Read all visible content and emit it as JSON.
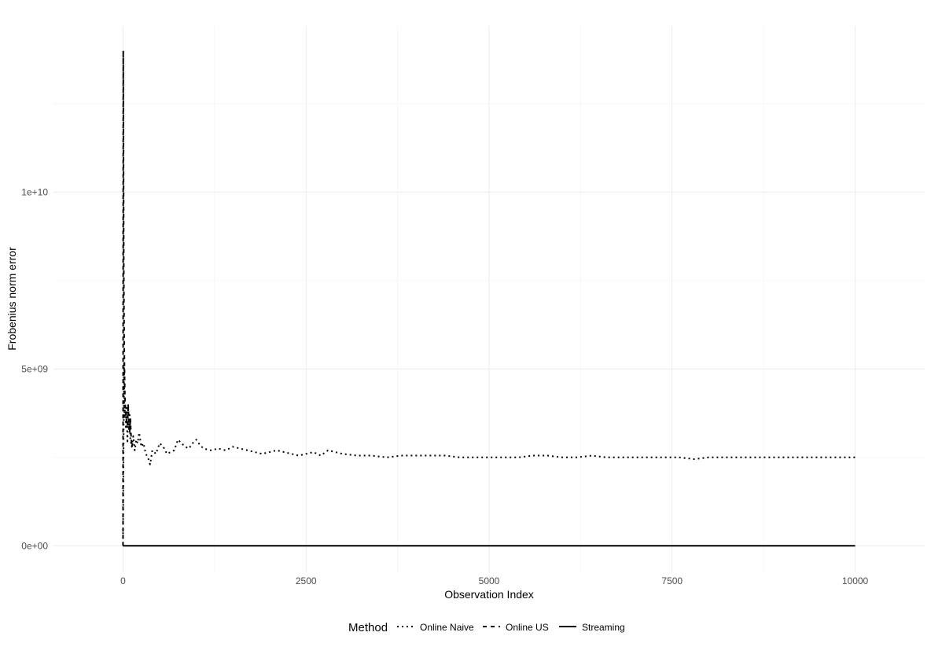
{
  "chart_data": {
    "type": "line",
    "xlabel": "Observation Index",
    "ylabel": "Frobenius norm error",
    "xlim": [
      -950,
      10950
    ],
    "ylim": [
      -750000000,
      14700000000
    ],
    "x_ticks": [
      0,
      2500,
      5000,
      7500,
      10000
    ],
    "x_tick_labels": [
      "0",
      "2500",
      "5000",
      "7500",
      "10000"
    ],
    "y_ticks": [
      0,
      5000000000,
      10000000000
    ],
    "y_tick_labels": [
      "0e+00",
      "5e+09",
      "1e+10"
    ],
    "grid": true,
    "legend": {
      "title": "Method",
      "position": "bottom"
    },
    "series": [
      {
        "name": "Online Naive",
        "linetype": "dotted",
        "x": [
          0,
          5,
          10,
          15,
          20,
          30,
          40,
          50,
          60,
          70,
          80,
          90,
          100,
          120,
          140,
          160,
          180,
          200,
          220,
          250,
          280,
          310,
          340,
          370,
          400,
          450,
          500,
          550,
          600,
          650,
          700,
          750,
          800,
          850,
          900,
          950,
          1000,
          1050,
          1100,
          1200,
          1300,
          1400,
          1500,
          1600,
          1700,
          1800,
          1900,
          2000,
          2100,
          2200,
          2300,
          2400,
          2500,
          2600,
          2700,
          2800,
          2900,
          3000,
          3200,
          3400,
          3600,
          3800,
          4000,
          4200,
          4400,
          4600,
          4800,
          5000,
          5200,
          5400,
          5600,
          5800,
          6000,
          6200,
          6400,
          6600,
          6800,
          7000,
          7200,
          7400,
          7600,
          7800,
          8000,
          8200,
          8400,
          8600,
          8800,
          9000,
          9200,
          9400,
          9600,
          9800,
          10000
        ],
        "y": [
          200000000,
          2000000000,
          3800000000,
          5200000000,
          3600000000,
          4000000000,
          3300000000,
          3900000000,
          2900000000,
          4000000000,
          3300000000,
          3700000000,
          3000000000,
          2800000000,
          3100000000,
          2700000000,
          3000000000,
          2900000000,
          3200000000,
          2800000000,
          2900000000,
          2600000000,
          2500000000,
          2300000000,
          2700000000,
          2600000000,
          2900000000,
          2800000000,
          2600000000,
          2650000000,
          2700000000,
          3000000000,
          2900000000,
          2800000000,
          2750000000,
          2900000000,
          3000000000,
          2850000000,
          2750000000,
          2700000000,
          2750000000,
          2700000000,
          2800000000,
          2750000000,
          2700000000,
          2650000000,
          2600000000,
          2650000000,
          2700000000,
          2650000000,
          2600000000,
          2550000000,
          2600000000,
          2650000000,
          2550000000,
          2700000000,
          2650000000,
          2600000000,
          2550000000,
          2550000000,
          2500000000,
          2550000000,
          2550000000,
          2550000000,
          2550000000,
          2500000000,
          2500000000,
          2500000000,
          2500000000,
          2500000000,
          2550000000,
          2550000000,
          2500000000,
          2500000000,
          2550000000,
          2500000000,
          2500000000,
          2500000000,
          2500000000,
          2500000000,
          2500000000,
          2450000000,
          2500000000,
          2500000000,
          2500000000,
          2500000000,
          2500000000,
          2500000000,
          2500000000,
          2500000000,
          2500000000,
          2500000000,
          2500000000
        ]
      },
      {
        "name": "Online US",
        "linetype": "dashed",
        "x": [
          0,
          3,
          6,
          10,
          15,
          20,
          25,
          30,
          40,
          50,
          60,
          70,
          80,
          90,
          100,
          110,
          120,
          130
        ],
        "y": [
          0,
          14000000000,
          11500000000,
          8000000000,
          6000000000,
          5000000000,
          4300000000,
          4000000000,
          3700000000,
          3500000000,
          3400000000,
          4000000000,
          3500000000,
          3200000000,
          3600000000,
          3100000000,
          2800000000,
          2900000000
        ]
      },
      {
        "name": "Streaming",
        "linetype": "solid",
        "x": [
          0,
          10000
        ],
        "y": [
          0,
          0
        ]
      }
    ]
  }
}
